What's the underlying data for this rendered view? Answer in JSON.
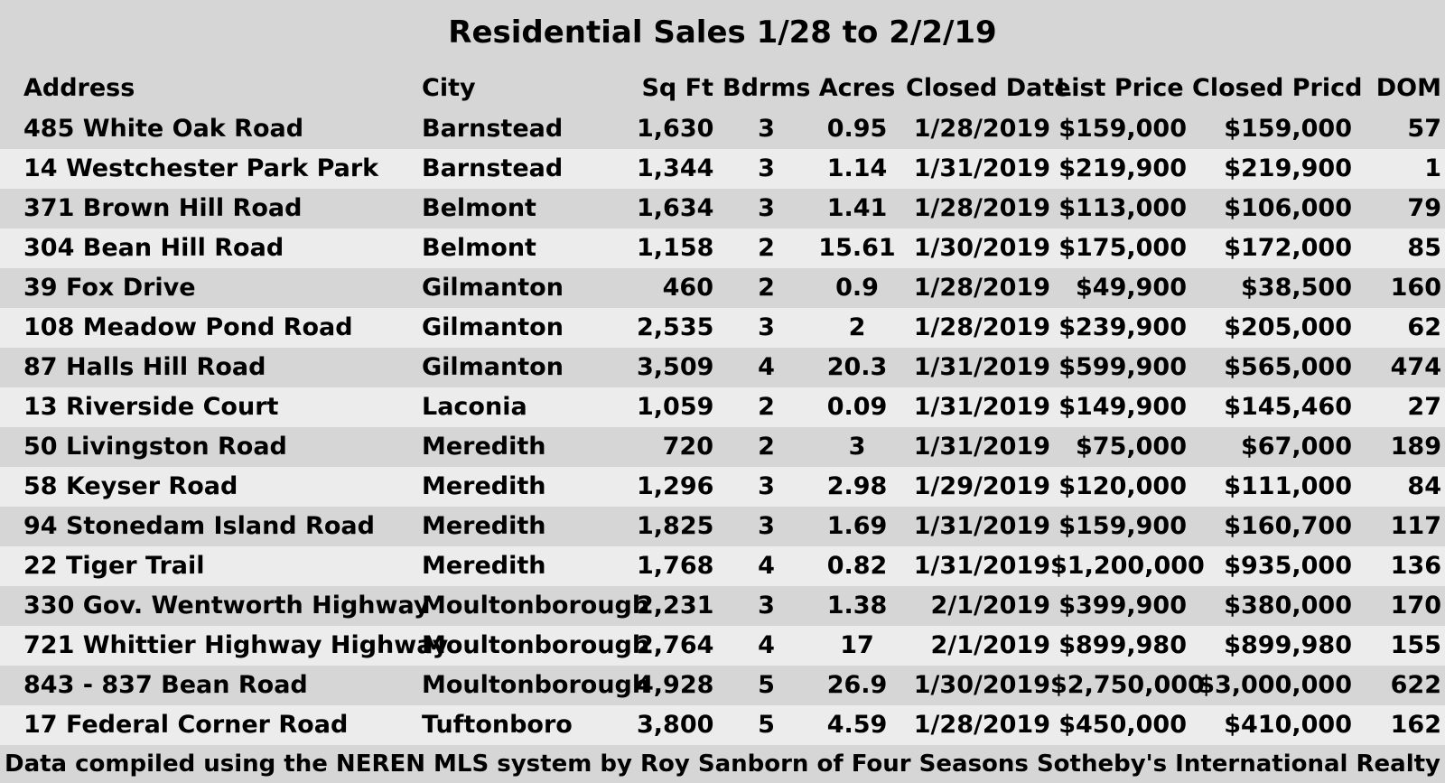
{
  "title": "Residential Sales 1/28 to 2/2/19",
  "headers": {
    "address": "Address",
    "city": "City",
    "sqft": "Sq Ft",
    "bdrms": "Bdrms",
    "acres": "Acres",
    "closed_date": "Closed Date",
    "list_price": "List Price",
    "closed_price": "Closed Pricd",
    "dom": "DOM"
  },
  "rows": [
    {
      "address": "485 White Oak Road",
      "city": "Barnstead",
      "sqft": "1,630",
      "bdrms": "3",
      "acres": "0.95",
      "closed_date": "1/28/2019",
      "list_price": "$159,000",
      "closed_price": "$159,000",
      "dom": "57"
    },
    {
      "address": "14 Westchester Park Park",
      "city": "Barnstead",
      "sqft": "1,344",
      "bdrms": "3",
      "acres": "1.14",
      "closed_date": "1/31/2019",
      "list_price": "$219,900",
      "closed_price": "$219,900",
      "dom": "1"
    },
    {
      "address": "371 Brown Hill Road",
      "city": "Belmont",
      "sqft": "1,634",
      "bdrms": "3",
      "acres": "1.41",
      "closed_date": "1/28/2019",
      "list_price": "$113,000",
      "closed_price": "$106,000",
      "dom": "79"
    },
    {
      "address": "304 Bean Hill Road",
      "city": "Belmont",
      "sqft": "1,158",
      "bdrms": "2",
      "acres": "15.61",
      "closed_date": "1/30/2019",
      "list_price": "$175,000",
      "closed_price": "$172,000",
      "dom": "85"
    },
    {
      "address": "39 Fox Drive",
      "city": "Gilmanton",
      "sqft": "460",
      "bdrms": "2",
      "acres": "0.9",
      "closed_date": "1/28/2019",
      "list_price": "$49,900",
      "closed_price": "$38,500",
      "dom": "160"
    },
    {
      "address": "108 Meadow Pond Road",
      "city": "Gilmanton",
      "sqft": "2,535",
      "bdrms": "3",
      "acres": "2",
      "closed_date": "1/28/2019",
      "list_price": "$239,900",
      "closed_price": "$205,000",
      "dom": "62"
    },
    {
      "address": "87 Halls Hill Road",
      "city": "Gilmanton",
      "sqft": "3,509",
      "bdrms": "4",
      "acres": "20.3",
      "closed_date": "1/31/2019",
      "list_price": "$599,900",
      "closed_price": "$565,000",
      "dom": "474"
    },
    {
      "address": "13 Riverside Court",
      "city": "Laconia",
      "sqft": "1,059",
      "bdrms": "2",
      "acres": "0.09",
      "closed_date": "1/31/2019",
      "list_price": "$149,900",
      "closed_price": "$145,460",
      "dom": "27"
    },
    {
      "address": "50 Livingston Road",
      "city": "Meredith",
      "sqft": "720",
      "bdrms": "2",
      "acres": "3",
      "closed_date": "1/31/2019",
      "list_price": "$75,000",
      "closed_price": "$67,000",
      "dom": "189"
    },
    {
      "address": "58 Keyser Road",
      "city": "Meredith",
      "sqft": "1,296",
      "bdrms": "3",
      "acres": "2.98",
      "closed_date": "1/29/2019",
      "list_price": "$120,000",
      "closed_price": "$111,000",
      "dom": "84"
    },
    {
      "address": "94 Stonedam Island Road",
      "city": "Meredith",
      "sqft": "1,825",
      "bdrms": "3",
      "acres": "1.69",
      "closed_date": "1/31/2019",
      "list_price": "$159,900",
      "closed_price": "$160,700",
      "dom": "117"
    },
    {
      "address": "22 Tiger Trail",
      "city": "Meredith",
      "sqft": "1,768",
      "bdrms": "4",
      "acres": "0.82",
      "closed_date": "1/31/2019",
      "list_price": "$1,200,000",
      "closed_price": "$935,000",
      "dom": "136"
    },
    {
      "address": "330 Gov. Wentworth Highway",
      "city": "Moultonborough",
      "sqft": "2,231",
      "bdrms": "3",
      "acres": "1.38",
      "closed_date": "2/1/2019",
      "list_price": "$399,900",
      "closed_price": "$380,000",
      "dom": "170"
    },
    {
      "address": "721 Whittier Highway Highway",
      "city": "Moultonborough",
      "sqft": "2,764",
      "bdrms": "4",
      "acres": "17",
      "closed_date": "2/1/2019",
      "list_price": "$899,980",
      "closed_price": "$899,980",
      "dom": "155"
    },
    {
      "address": "843 - 837 Bean Road",
      "city": "Moultonborough",
      "sqft": "4,928",
      "bdrms": "5",
      "acres": "26.9",
      "closed_date": "1/30/2019",
      "list_price": "$2,750,000",
      "closed_price": "$3,000,000",
      "dom": "622"
    },
    {
      "address": "17 Federal Corner Road",
      "city": "Tuftonboro",
      "sqft": "3,800",
      "bdrms": "5",
      "acres": "4.59",
      "closed_date": "1/28/2019",
      "list_price": "$450,000",
      "closed_price": "$410,000",
      "dom": "162"
    }
  ],
  "footer": "Data compiled using the NEREN MLS system by Roy Sanborn of Four Seasons Sotheby's International Realty"
}
